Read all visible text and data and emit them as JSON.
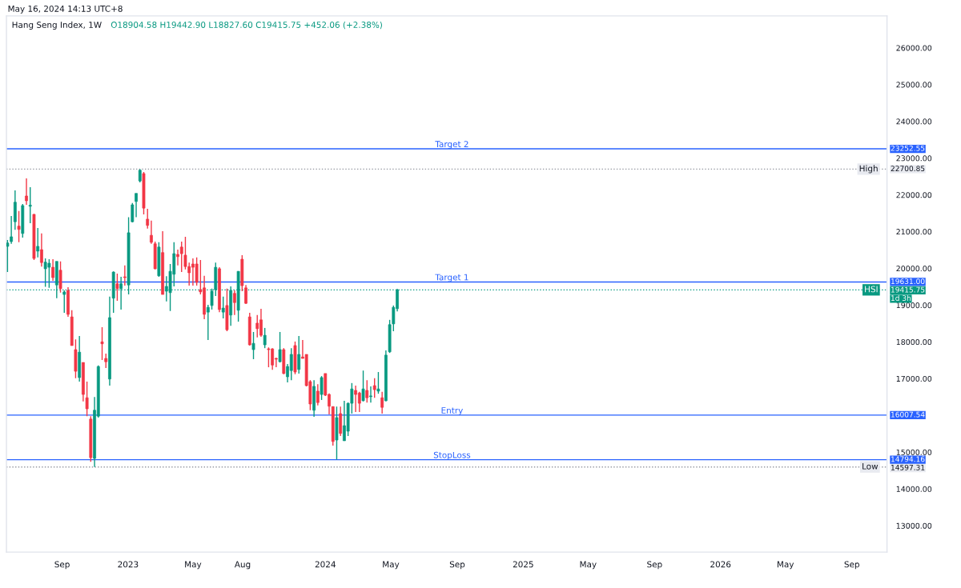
{
  "chart_data": {
    "type": "candlestick",
    "title": "Hang Seng Index, 1W",
    "subtitle": "O18904.58 H19442.90 L18827.60 C19415.75 +452.06 (+2.38%)",
    "annotations": [
      "May 16, 2024 14:13 UTC+8",
      "1d 3h",
      "23252.55",
      "19631.00",
      "16007.54",
      "14794.16",
      "22700.85",
      "14597.31",
      "19415.75"
    ],
    "colors": [
      "#089981",
      "#089981",
      "#089981",
      "#f23645",
      "#089981",
      "#f23645",
      "#089981",
      "#f23645",
      "#089981",
      "#f23645",
      "#089981",
      "#089981",
      "#f23645",
      "#089981",
      "#f23645",
      "#089981",
      "#f23645",
      "#f23645",
      "#f23645",
      "#089981",
      "#f23645",
      "#f23645",
      "#f23645",
      "#089981",
      "#089981",
      "#f23645",
      "#f23645",
      "#089981",
      "#089981",
      "#f23645",
      "#089981",
      "#f23645",
      "#089981",
      "#089981",
      "#089981",
      "#089981",
      "#f23645",
      "#f23645",
      "#f23645",
      "#f23645",
      "#089981",
      "#f23645",
      "#089981",
      "#089981",
      "#089981",
      "#f23645",
      "#f23645",
      "#f23645",
      "#f23645",
      "#f23645",
      "#f23645",
      "#f23645",
      "#f23645",
      "#089981",
      "#089981",
      "#089981",
      "#f23645",
      "#089981",
      "#f23645",
      "#089981",
      "#f23645",
      "#089981",
      "#f23645",
      "#f23645",
      "#f23645",
      "#089981",
      "#f23645",
      "#f23645",
      "#089981",
      "#f23645",
      "#f23645",
      "#f23645",
      "#089981",
      "#f23645",
      "#089981",
      "#089981",
      "#f23645",
      "#089981",
      "#f23645",
      "#f23645",
      "#f23645",
      "#089981",
      "#f23645",
      "#089981",
      "#f23645",
      "#f23645",
      "#f23645",
      "#089981",
      "#f23645",
      "#089981",
      "#089981",
      "#089981",
      "#f23645",
      "#f23645",
      "#089981",
      "#f23645",
      "#089981",
      "#f23645",
      "#089981",
      "#f23645",
      "#089981",
      "#089981",
      "#089981",
      "#089981"
    ],
    "x": [
      "2022-05-23",
      "2022-05-30",
      "2022-06-06",
      "2022-06-13",
      "2022-06-20",
      "2022-06-27",
      "2022-07-04",
      "2022-07-11",
      "2022-07-18",
      "2022-07-25",
      "2022-08-01",
      "2022-08-08",
      "2022-08-15",
      "2022-08-22",
      "2022-08-29",
      "2022-09-05",
      "2022-09-12",
      "2022-09-19",
      "2022-09-26",
      "2022-10-03",
      "2022-10-10",
      "2022-10-17",
      "2022-10-24",
      "2022-10-31",
      "2022-11-07",
      "2022-11-14",
      "2022-11-21",
      "2022-11-28",
      "2022-12-05",
      "2022-12-12",
      "2022-12-19",
      "2022-12-26",
      "2023-01-02",
      "2023-01-09",
      "2023-01-16",
      "2023-01-23",
      "2023-01-30",
      "2023-02-06",
      "2023-02-13",
      "2023-02-20",
      "2023-02-27",
      "2023-03-06",
      "2023-03-13",
      "2023-03-20",
      "2023-03-27",
      "2023-04-03",
      "2023-04-10",
      "2023-04-17",
      "2023-04-24",
      "2023-05-01",
      "2023-05-08",
      "2023-05-15",
      "2023-05-22",
      "2023-05-29",
      "2023-06-05",
      "2023-06-12",
      "2023-06-19",
      "2023-06-26",
      "2023-07-03",
      "2023-07-10",
      "2023-07-17",
      "2023-07-24",
      "2023-07-31",
      "2023-08-07",
      "2023-08-14",
      "2023-08-21",
      "2023-08-28",
      "2023-09-04",
      "2023-09-11",
      "2023-09-18",
      "2023-09-25",
      "2023-10-02",
      "2023-10-09",
      "2023-10-16",
      "2023-10-23",
      "2023-10-30",
      "2023-11-06",
      "2023-11-13",
      "2023-11-20",
      "2023-11-27",
      "2023-12-04",
      "2023-12-11",
      "2023-12-18",
      "2023-12-25",
      "2024-01-01",
      "2024-01-08",
      "2024-01-15",
      "2024-01-22",
      "2024-01-29",
      "2024-02-05",
      "2024-02-12",
      "2024-02-19",
      "2024-02-26",
      "2024-03-04",
      "2024-03-11",
      "2024-03-18",
      "2024-03-25",
      "2024-04-01",
      "2024-04-08",
      "2024-04-15",
      "2024-04-22",
      "2024-04-29",
      "2024-05-06",
      "2024-05-13"
    ],
    "ohlc": [
      [
        20600,
        20774,
        19900,
        20690
      ],
      [
        20730,
        21427,
        20670,
        20860
      ],
      [
        21270,
        22120,
        21050,
        21800
      ],
      [
        21150,
        21560,
        20710,
        21060
      ],
      [
        20950,
        21750,
        20840,
        21710
      ],
      [
        21970,
        22450,
        21730,
        21840
      ],
      [
        21690,
        22210,
        21230,
        21720
      ],
      [
        21470,
        21480,
        20230,
        20270
      ],
      [
        20470,
        21100,
        20300,
        20600
      ],
      [
        20510,
        20950,
        20050,
        20160
      ],
      [
        19990,
        20270,
        19500,
        20170
      ],
      [
        20030,
        20250,
        19470,
        20140
      ],
      [
        20030,
        20250,
        19660,
        19750
      ],
      [
        19550,
        20190,
        19190,
        20190
      ],
      [
        19950,
        20190,
        19340,
        19450
      ],
      [
        19290,
        19400,
        18790,
        19360
      ],
      [
        19400,
        19490,
        18680,
        18750
      ],
      [
        18680,
        18860,
        17900,
        17900
      ],
      [
        17790,
        18070,
        17010,
        17200
      ],
      [
        17030,
        18160,
        16920,
        17720
      ],
      [
        17440,
        17440,
        16380,
        16570
      ],
      [
        16480,
        16920,
        15980,
        16180
      ],
      [
        15900,
        15980,
        14740,
        14850
      ],
      [
        14830,
        16500,
        14597.31,
        16140
      ],
      [
        15980,
        17360,
        15940,
        17330
      ],
      [
        18000,
        18400,
        17510,
        17950
      ],
      [
        17550,
        17680,
        17290,
        17460
      ],
      [
        16990,
        19230,
        16810,
        18660
      ],
      [
        19190,
        19920,
        18790,
        19900
      ],
      [
        19580,
        19860,
        19120,
        19450
      ],
      [
        19450,
        19770,
        18880,
        19580
      ],
      [
        19770,
        20080,
        19530,
        19750
      ],
      [
        19550,
        21390,
        19290,
        20970
      ],
      [
        21270,
        21780,
        21250,
        21730
      ],
      [
        21820,
        22040,
        21390,
        22040
      ],
      [
        22380,
        22700.85,
        22340,
        22670
      ],
      [
        22580,
        22620,
        21470,
        21640
      ],
      [
        21340,
        21620,
        21080,
        21170
      ],
      [
        20900,
        21300,
        20670,
        20710
      ],
      [
        20670,
        20730,
        19970,
        19990
      ],
      [
        19800,
        20710,
        19770,
        20580
      ],
      [
        20430,
        21010,
        19290,
        19290
      ],
      [
        19380,
        19790,
        19100,
        19510
      ],
      [
        19340,
        20120,
        18840,
        19920
      ],
      [
        19840,
        20710,
        19510,
        20400
      ],
      [
        20380,
        20510,
        20080,
        20320
      ],
      [
        20580,
        20730,
        19900,
        20400
      ],
      [
        20360,
        20860,
        19970,
        20050
      ],
      [
        20050,
        20160,
        19530,
        19880
      ],
      [
        20120,
        20270,
        19530,
        20030
      ],
      [
        20120,
        20300,
        19530,
        19620
      ],
      [
        19420,
        20230,
        19290,
        19360
      ],
      [
        19470,
        19800,
        18620,
        18750
      ],
      [
        18810,
        19010,
        18050,
        18940
      ],
      [
        18990,
        19450,
        18880,
        19380
      ],
      [
        19420,
        20160,
        19250,
        20030
      ],
      [
        19990,
        20030,
        18810,
        18880
      ],
      [
        18810,
        19230,
        18640,
        18920
      ],
      [
        18990,
        19450,
        18290,
        18330
      ],
      [
        18730,
        19510,
        18440,
        19400
      ],
      [
        19320,
        19400,
        18730,
        19070
      ],
      [
        18860,
        19920,
        18550,
        19920
      ],
      [
        20250,
        20360,
        19380,
        19530
      ],
      [
        19470,
        19550,
        19030,
        19050
      ],
      [
        18680,
        18790,
        17900,
        17920
      ],
      [
        17790,
        18270,
        17530,
        17960
      ],
      [
        18510,
        18730,
        18120,
        18360
      ],
      [
        18600,
        18900,
        18140,
        18180
      ],
      [
        17920,
        18380,
        17830,
        18180
      ],
      [
        17810,
        17850,
        17310,
        17790
      ],
      [
        17810,
        17830,
        17240,
        17370
      ],
      [
        17550,
        17570,
        17310,
        17530
      ],
      [
        17460,
        18270,
        17440,
        17790
      ],
      [
        17790,
        17830,
        17120,
        17140
      ],
      [
        17050,
        17400,
        16900,
        17330
      ],
      [
        17220,
        17830,
        16960,
        17660
      ],
      [
        17900,
        18010,
        17120,
        17180
      ],
      [
        17250,
        18160,
        17140,
        17660
      ],
      [
        17590,
        18050,
        17550,
        17550
      ],
      [
        17660,
        17660,
        16790,
        16810
      ],
      [
        16920,
        16960,
        16140,
        16310
      ],
      [
        16140,
        16960,
        15960,
        16790
      ],
      [
        16660,
        16850,
        16270,
        16350
      ],
      [
        16570,
        17070,
        16420,
        17030
      ],
      [
        17140,
        17140,
        16530,
        16550
      ],
      [
        16570,
        16600,
        16030,
        16250
      ],
      [
        16240,
        16240,
        15180,
        15290
      ],
      [
        15330,
        16240,
        14800,
        15940
      ],
      [
        16050,
        16240,
        15440,
        15510
      ],
      [
        15310,
        16400,
        15310,
        15720
      ],
      [
        15570,
        16350,
        15440,
        16330
      ],
      [
        16330,
        16880,
        16050,
        16720
      ],
      [
        16680,
        16810,
        16090,
        16570
      ],
      [
        16610,
        16640,
        16090,
        16330
      ],
      [
        16400,
        17220,
        16380,
        16720
      ],
      [
        16680,
        16960,
        16350,
        16480
      ],
      [
        16510,
        16790,
        16350,
        16530
      ],
      [
        16810,
        17010,
        16480,
        16700
      ],
      [
        16660,
        17180,
        16590,
        16720
      ],
      [
        16480,
        16640,
        16050,
        16220
      ],
      [
        16400,
        17770,
        16380,
        17640
      ],
      [
        17730,
        18600,
        17700,
        18470
      ],
      [
        18490,
        18990,
        18290,
        18940
      ],
      [
        18904.58,
        19442.9,
        18827.6,
        19415.75
      ]
    ],
    "xlim": [
      "2022-05-21",
      "2026-11-05"
    ],
    "xticks": [
      {
        "value": "2022-09-01",
        "label": "Sep"
      },
      {
        "value": "2023-01-01",
        "label": "2023"
      },
      {
        "value": "2023-05-01",
        "label": "May"
      },
      {
        "value": "2023-08-01",
        "label": "Aug"
      },
      {
        "value": "2024-01-01",
        "label": "2024"
      },
      {
        "value": "2024-05-01",
        "label": "May"
      },
      {
        "value": "2024-09-01",
        "label": "Sep"
      },
      {
        "value": "2025-01-01",
        "label": "2025"
      },
      {
        "value": "2025-05-01",
        "label": "May"
      },
      {
        "value": "2025-09-01",
        "label": "Sep"
      },
      {
        "value": "2026-01-01",
        "label": "2026"
      },
      {
        "value": "2026-05-01",
        "label": "May"
      },
      {
        "value": "2026-09-01",
        "label": "Sep"
      }
    ],
    "ylim": [
      12280,
      26870
    ],
    "yticks": [
      {
        "value": 13000,
        "label": "13000.00"
      },
      {
        "value": 14000,
        "label": "14000.00"
      },
      {
        "value": 15000,
        "label": "15000.00"
      },
      {
        "value": 16000,
        "label": null
      },
      {
        "value": 17000,
        "label": "17000.00"
      },
      {
        "value": 18000,
        "label": "18000.00"
      },
      {
        "value": 19000,
        "label": "19000.00"
      },
      {
        "value": 20000,
        "label": "20000.00"
      },
      {
        "value": 21000,
        "label": "21000.00"
      },
      {
        "value": 22000,
        "label": "22000.00"
      },
      {
        "value": 23000,
        "label": "23000.00"
      },
      {
        "value": 24000,
        "label": "24000.00"
      },
      {
        "value": 25000,
        "label": "25000.00"
      },
      {
        "value": 26000,
        "label": "26000.00"
      }
    ],
    "ref_lines": [
      {
        "axis": "y",
        "value": 23252.55,
        "label": "Target 2",
        "color": "#2962ff",
        "line_style": "solid"
      },
      {
        "axis": "y",
        "value": 19631.0,
        "label": "Target 1",
        "color": "#2962ff",
        "line_style": "solid"
      },
      {
        "axis": "y",
        "value": 16007.54,
        "label": "Entry",
        "color": "#2962ff",
        "line_style": "solid"
      },
      {
        "axis": "y",
        "value": 14794.16,
        "label": "StopLoss",
        "color": "#2962ff",
        "line_style": "solid"
      },
      {
        "axis": "y",
        "value": 22700.85,
        "label": "High",
        "color": "#9598a1",
        "line_style": "dotted"
      },
      {
        "axis": "y",
        "value": 14597.31,
        "label": "Low",
        "color": "#9598a1",
        "line_style": "dotted"
      },
      {
        "axis": "y",
        "value": 19415.75,
        "label": "HSI",
        "color": "#089981",
        "line_style": "dotted"
      }
    ],
    "grid": false
  }
}
